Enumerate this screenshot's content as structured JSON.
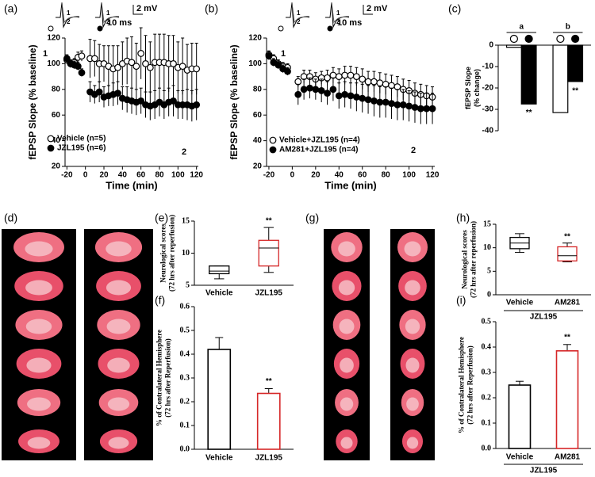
{
  "figures": [
    {
      "panel": "(d)"
    },
    {
      "panel": "(g)"
    }
  ],
  "chart_data": [
    {
      "type": "line",
      "panel": "(a)",
      "x_label": "Time (min)",
      "y_label": [
        "fEPSP Slope (% baseline)"
      ],
      "xlim": [
        -22,
        122
      ],
      "xticks": [
        -20,
        0,
        20,
        40,
        60,
        80,
        100,
        120
      ],
      "ylim": [
        20,
        120
      ],
      "yticks": [
        20,
        40,
        60,
        80,
        100,
        120
      ],
      "x": [
        -20,
        -16,
        -12,
        -8,
        -4,
        5,
        10,
        15,
        20,
        25,
        30,
        35,
        40,
        45,
        50,
        55,
        60,
        65,
        70,
        75,
        80,
        85,
        90,
        95,
        100,
        105,
        110,
        115,
        120
      ],
      "series": [
        {
          "name": "Vehicle (n=5)",
          "marker": "open",
          "color": "#000000",
          "values": [
            103,
            100,
            101,
            105,
            106,
            104,
            104,
            100,
            100,
            98,
            96,
            97,
            100,
            102,
            101,
            98,
            108,
            100,
            97,
            101,
            101,
            101,
            100,
            100,
            97,
            98,
            95,
            96,
            96
          ],
          "errors": [
            3,
            3,
            3,
            4,
            4,
            15,
            14,
            15,
            14,
            16,
            18,
            17,
            17,
            18,
            20,
            18,
            20,
            22,
            20,
            22,
            22,
            22,
            22,
            22,
            20,
            22,
            20,
            20,
            20
          ]
        },
        {
          "name": "JZL195 (n=6)",
          "marker": "filled",
          "color": "#000000",
          "values": [
            104,
            100,
            99,
            98,
            93,
            78,
            76,
            78,
            74,
            75,
            76,
            77,
            73,
            72,
            71,
            70,
            71,
            68,
            67,
            68,
            70,
            68,
            70,
            71,
            68,
            68,
            68,
            67,
            68
          ],
          "errors": [
            3,
            3,
            3,
            3,
            3,
            8,
            7,
            8,
            8,
            8,
            9,
            9,
            9,
            10,
            10,
            10,
            10,
            10,
            11,
            11,
            11,
            11,
            11,
            12,
            11,
            11,
            12,
            12,
            12
          ]
        }
      ],
      "annotations": [
        "1",
        "2"
      ],
      "inset": {
        "trace_labels": [
          "1",
          "2",
          "1",
          "2"
        ],
        "scale_y": "2 mV",
        "scale_x": "10 ms"
      }
    },
    {
      "type": "line",
      "panel": "(b)",
      "x_label": "Time (min)",
      "y_label": [
        "fEPSP Slope (% baseline)"
      ],
      "xlim": [
        -22,
        122
      ],
      "xticks": [
        -20,
        0,
        20,
        40,
        60,
        80,
        100,
        120
      ],
      "ylim": [
        20,
        120
      ],
      "yticks": [
        20,
        40,
        60,
        80,
        100,
        120
      ],
      "x": [
        -20,
        -16,
        -12,
        -8,
        -4,
        5,
        10,
        15,
        20,
        25,
        30,
        35,
        40,
        45,
        50,
        55,
        60,
        65,
        70,
        75,
        80,
        85,
        90,
        95,
        100,
        105,
        110,
        115,
        120
      ],
      "series": [
        {
          "name": "Vehicle+JZL195 (n=4)",
          "marker": "open",
          "color": "#000000",
          "values": [
            107,
            104,
            100,
            98,
            97,
            86,
            90,
            90,
            88,
            89,
            89,
            91,
            90,
            91,
            91,
            90,
            88,
            86,
            86,
            85,
            84,
            83,
            82,
            80,
            79,
            77,
            76,
            75,
            74
          ],
          "errors": [
            3,
            3,
            3,
            3,
            3,
            4,
            5,
            5,
            5,
            5,
            6,
            6,
            6,
            7,
            7,
            7,
            8,
            8,
            8,
            8,
            8,
            8,
            8,
            8,
            8,
            8,
            8,
            8,
            8
          ]
        },
        {
          "name": "AM281+JZL195 (n=4)",
          "marker": "filled",
          "color": "#000000",
          "values": [
            106,
            101,
            99,
            96,
            94,
            76,
            80,
            81,
            80,
            79,
            77,
            80,
            75,
            76,
            75,
            74,
            73,
            72,
            71,
            70,
            70,
            69,
            68,
            68,
            67,
            66,
            65,
            65,
            65
          ],
          "errors": [
            3,
            3,
            3,
            3,
            3,
            8,
            8,
            8,
            8,
            9,
            9,
            9,
            10,
            10,
            10,
            11,
            11,
            11,
            12,
            12,
            12,
            12,
            12,
            12,
            12,
            12,
            12,
            12,
            12
          ]
        }
      ],
      "annotations": [
        "1",
        "2"
      ],
      "inset": {
        "trace_labels": [
          "1",
          "2",
          "1",
          "2"
        ],
        "scale_y": "2 mV",
        "scale_x": "10 ms"
      }
    },
    {
      "type": "bar",
      "panel": "(c)",
      "y_label": [
        "fEPSP Slope",
        "(% change)"
      ],
      "categories": [
        "a",
        "b"
      ],
      "ylim": [
        -40,
        0
      ],
      "yticks": [
        -40,
        -30,
        -20,
        -10,
        0
      ],
      "series": [
        {
          "marker": "open",
          "color": "#000000",
          "values": [
            -1,
            -31.5
          ],
          "errors": [
            0.6,
            0.6
          ]
        },
        {
          "marker": "filled",
          "color": "#000000",
          "values": [
            -27.5,
            -17
          ],
          "errors": [
            0.5,
            0.8
          ]
        }
      ],
      "significance": [
        "**",
        "**"
      ]
    },
    {
      "type": "box",
      "panel": "(e)",
      "y_label": [
        "Neurological scores",
        "(72 hrs after reperfusion)"
      ],
      "categories": [
        "Vehicle",
        "JZL195"
      ],
      "ylim": [
        5,
        15
      ],
      "yticks": [
        5,
        10,
        15
      ],
      "boxes": [
        {
          "min": 6,
          "q1": 6.8,
          "median": 7.2,
          "q3": 8,
          "max": 8,
          "color": "#000000"
        },
        {
          "min": 7,
          "q1": 8,
          "median": 10.8,
          "q3": 12,
          "max": 14,
          "color": "#d62728"
        }
      ],
      "significance": "**"
    },
    {
      "type": "bar",
      "panel": "(f)",
      "y_label": [
        "% of Contralateral Hemisphere",
        "(72 hrs after Reperfusion)"
      ],
      "categories": [
        "Vehicle",
        "JZL195"
      ],
      "values": [
        0.42,
        0.235
      ],
      "errors": [
        0.05,
        0.02
      ],
      "colors": [
        "#000000",
        "#d62728"
      ],
      "ylim": [
        0,
        0.6
      ],
      "yticks": [
        {
          "value": 0,
          "label": "0.0"
        },
        0.1,
        0.2,
        0.3,
        0.4,
        0.5,
        0.6
      ],
      "significance": "**"
    },
    {
      "type": "box",
      "panel": "(h)",
      "y_label": [
        "Neurological scores",
        "(72 hrs after reperfusion)"
      ],
      "categories": [
        "Vehicle",
        "AM281"
      ],
      "group_label": "JZL195",
      "ylim": [
        0,
        15
      ],
      "yticks": [
        0,
        5,
        10,
        15
      ],
      "boxes": [
        {
          "min": 9,
          "q1": 9.8,
          "median": 11,
          "q3": 12.2,
          "max": 13,
          "color": "#000000"
        },
        {
          "min": 7,
          "q1": 7.2,
          "median": 8.3,
          "q3": 10.2,
          "max": 11,
          "color": "#d62728"
        }
      ],
      "significance": "**"
    },
    {
      "type": "bar",
      "panel": "(i)",
      "y_label": [
        "% of Contralateral Hemisphere",
        "(72 hrs after Reperfusion)"
      ],
      "categories": [
        "Vehicle",
        "AM281"
      ],
      "group_label": "JZL195",
      "values": [
        0.25,
        0.385
      ],
      "errors": [
        0.015,
        0.025
      ],
      "colors": [
        "#000000",
        "#d62728"
      ],
      "ylim": [
        0,
        0.5
      ],
      "yticks": [
        {
          "value": 0,
          "label": "0.0"
        },
        0.1,
        0.2,
        0.3,
        0.4,
        0.5
      ],
      "significance": "**"
    }
  ]
}
